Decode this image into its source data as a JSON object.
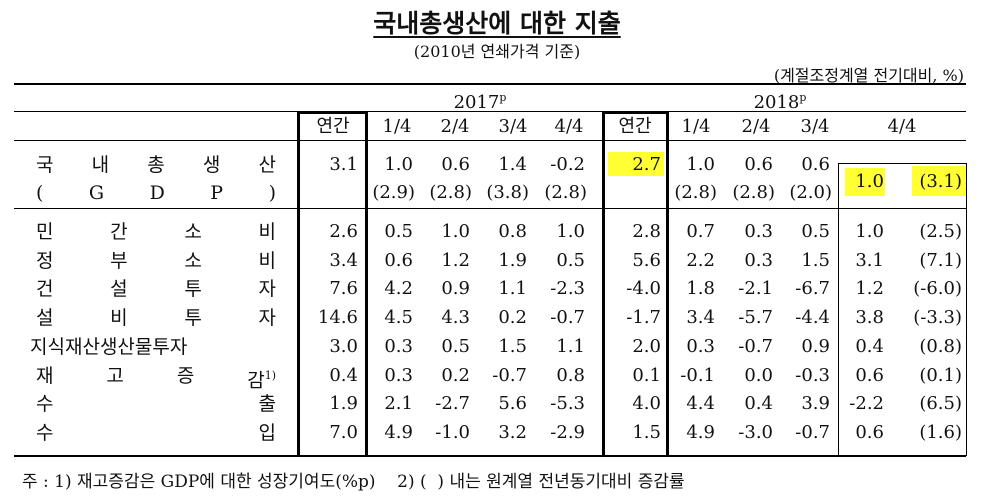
{
  "title": "국내총생산에 대한 지출",
  "subtitle": "(2010년 연쇄가격 기준)",
  "unit_note": "(계절조정계열 전기대비, %)",
  "header": {
    "year_2017": "2017",
    "year_2018": "2018",
    "preliminary_mark": "p",
    "columns_2017": [
      "연간",
      "1/4",
      "2/4",
      "3/4",
      "4/4"
    ],
    "columns_2018": [
      "연간",
      "1/4",
      "2/4",
      "3/4",
      "4/4"
    ]
  },
  "gdp": {
    "label_line1": "국 내 총 생 산",
    "label_line2": "( G D P )",
    "values_2017": [
      "3.1",
      "1.0",
      "0.6",
      "1.4",
      "-0.2"
    ],
    "yoy_2017": [
      "(2.9)",
      "(2.8)",
      "(3.8)",
      "(2.8)"
    ],
    "values_2018": [
      "2.7",
      "1.0",
      "0.6",
      "0.6",
      "1.0"
    ],
    "yoy_2018": [
      "(2.8)",
      "(2.8)",
      "(2.0)",
      "(3.1)"
    ]
  },
  "rows": [
    {
      "label": "민간소비",
      "sup": "",
      "v2017": [
        "2.6",
        "0.5",
        "1.0",
        "0.8",
        "1.0"
      ],
      "v2018": [
        "2.8",
        "0.7",
        "0.3",
        "0.5",
        "1.0"
      ],
      "yoy": "(2.5)"
    },
    {
      "label": "정부소비",
      "sup": "",
      "v2017": [
        "3.4",
        "0.6",
        "1.2",
        "1.9",
        "0.5"
      ],
      "v2018": [
        "5.6",
        "2.2",
        "0.3",
        "1.5",
        "3.1"
      ],
      "yoy": "(7.1)"
    },
    {
      "label": "건설투자",
      "sup": "",
      "v2017": [
        "7.6",
        "4.2",
        "0.9",
        "1.1",
        "-2.3"
      ],
      "v2018": [
        "-4.0",
        "1.8",
        "-2.1",
        "-6.7",
        "1.2"
      ],
      "yoy": "(-6.0)"
    },
    {
      "label": "설비투자",
      "sup": "",
      "v2017": [
        "14.6",
        "4.5",
        "4.3",
        "0.2",
        "-0.7"
      ],
      "v2018": [
        "-1.7",
        "3.4",
        "-5.7",
        "-4.4",
        "3.8"
      ],
      "yoy": "(-3.3)"
    },
    {
      "label": "지식재산생산물투자",
      "sup": "",
      "v2017": [
        "3.0",
        "0.3",
        "0.5",
        "1.5",
        "1.1"
      ],
      "v2018": [
        "2.0",
        "0.3",
        "-0.7",
        "0.9",
        "0.4"
      ],
      "yoy": "(0.8)"
    },
    {
      "label": "재고증감",
      "sup": "1)",
      "v2017": [
        "0.4",
        "0.3",
        "0.2",
        "-0.7",
        "0.8"
      ],
      "v2018": [
        "0.1",
        "-0.1",
        "0.0",
        "-0.3",
        "0.6"
      ],
      "yoy": "(0.1)"
    },
    {
      "label": "수출",
      "sup": "",
      "v2017": [
        "1.9",
        "2.1",
        "-2.7",
        "5.6",
        "-5.3"
      ],
      "v2018": [
        "4.0",
        "4.4",
        "0.4",
        "3.9",
        "-2.2"
      ],
      "yoy": "(6.5)"
    },
    {
      "label": "수입",
      "sup": "",
      "v2017": [
        "7.0",
        "4.9",
        "-1.0",
        "3.2",
        "-2.9"
      ],
      "v2018": [
        "1.5",
        "4.9",
        "-3.0",
        "-0.7",
        "0.6"
      ],
      "yoy": "(1.6)"
    }
  ],
  "footnote": "주 : 1) 재고증감은 GDP에 대한 성장기여도(%p)    2) (  ) 내는 원계열 전년동기대비 증감률",
  "highlight_color": "#ffff33"
}
